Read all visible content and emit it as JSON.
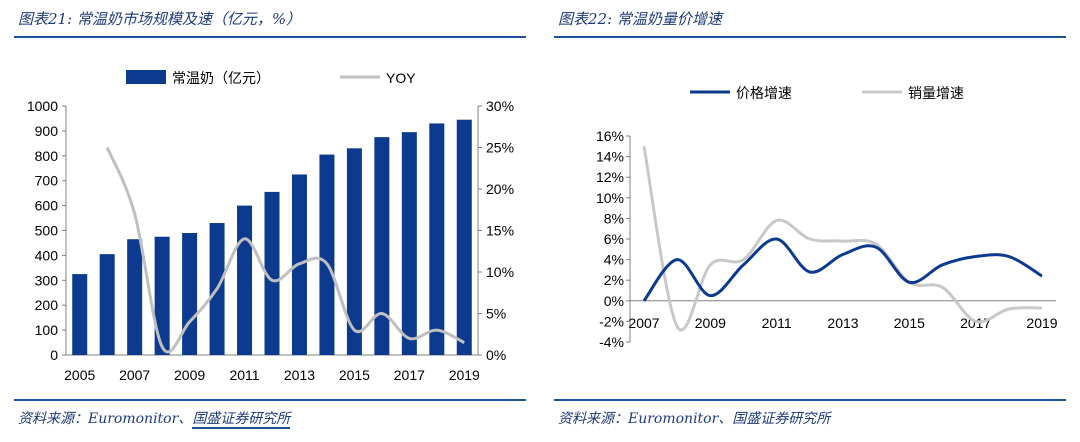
{
  "panels": [
    {
      "title": "图表21: 常温奶市场规模及速（亿元，%）",
      "source": "资料来源：Euromonitor、",
      "source_org": "国盛证券研究所"
    },
    {
      "title": "图表22: 常温奶量价增速",
      "source": "资料来源：Euromonitor、国盛证券研究所",
      "source_org": ""
    }
  ],
  "chart_data": [
    {
      "type": "bar",
      "title": "",
      "categories": [
        "2005",
        "2006",
        "2007",
        "2008",
        "2009",
        "2010",
        "2011",
        "2012",
        "2013",
        "2014",
        "2015",
        "2016",
        "2017",
        "2018",
        "2019"
      ],
      "x_tick_labels": [
        "2005",
        "2007",
        "2009",
        "2011",
        "2013",
        "2015",
        "2017",
        "2019"
      ],
      "series": [
        {
          "name": "常温奶（亿元）",
          "type": "bar",
          "axis": "left",
          "values": [
            325,
            405,
            465,
            475,
            490,
            530,
            600,
            655,
            725,
            805,
            830,
            875,
            895,
            930,
            945
          ]
        },
        {
          "name": "YOY",
          "type": "line",
          "axis": "right",
          "values": [
            null,
            25,
            17,
            1,
            4,
            8,
            14,
            9,
            11,
            11,
            3,
            5,
            2,
            3,
            1.5
          ]
        }
      ],
      "ylim_left": [
        0,
        1000
      ],
      "y_ticks_left": [
        "0",
        "100",
        "200",
        "300",
        "400",
        "500",
        "600",
        "700",
        "800",
        "900",
        "1000"
      ],
      "ylim_right": [
        0,
        30
      ],
      "y_ticks_right": [
        "0%",
        "5%",
        "10%",
        "15%",
        "20%",
        "25%",
        "30%"
      ],
      "legend": "top",
      "colors": {
        "bar": "#0b3a8f",
        "line": "#bfbfbf"
      }
    },
    {
      "type": "line",
      "title": "",
      "x": [
        2007,
        2008,
        2009,
        2010,
        2011,
        2012,
        2013,
        2014,
        2015,
        2016,
        2017,
        2018,
        2019
      ],
      "x_tick_labels": [
        "2007",
        "2009",
        "2011",
        "2013",
        "2015",
        "2017",
        "2019"
      ],
      "series": [
        {
          "name": "价格增速",
          "values": [
            0,
            4,
            0.5,
            3.5,
            6,
            2.8,
            4.5,
            5.2,
            1.8,
            3.5,
            4.3,
            4.3,
            2.4
          ]
        },
        {
          "name": "销量增速",
          "values": [
            15,
            -2.5,
            3.5,
            4,
            7.8,
            6,
            5.8,
            5.5,
            1.8,
            1.3,
            -2,
            -0.8,
            -0.7
          ]
        }
      ],
      "ylim": [
        -4,
        16
      ],
      "y_ticks": [
        "-4%",
        "-2%",
        "0%",
        "2%",
        "4%",
        "6%",
        "8%",
        "10%",
        "12%",
        "14%",
        "16%"
      ],
      "legend": "top",
      "colors": {
        "价格增速": "#0b3a8f",
        "销量增速": "#c8c8c8"
      }
    }
  ]
}
